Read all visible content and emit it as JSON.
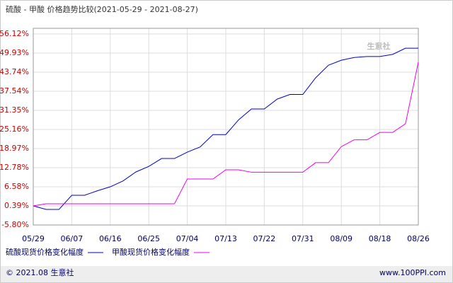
{
  "chart_data": {
    "type": "line",
    "title": "硫酸 - 甲酸 价格趋势比较(2021-05-29 - 2021-08-27)",
    "categories": [
      "05/29",
      null,
      null,
      "06/07",
      null,
      null,
      "06/16",
      null,
      null,
      "06/25",
      null,
      null,
      "07/04",
      null,
      null,
      "07/13",
      null,
      null,
      "07/22",
      null,
      null,
      "07/31",
      null,
      null,
      "08/09",
      null,
      null,
      "08/18",
      null,
      null,
      "08/26"
    ],
    "series": [
      {
        "name": "硫酸现货价格变化幅度",
        "color": "#0000cc",
        "values": [
          0.39,
          -0.76,
          -0.76,
          3.83,
          3.83,
          5.3,
          6.58,
          8.5,
          11.4,
          13.2,
          15.75,
          15.75,
          17.8,
          19.5,
          23.5,
          23.5,
          28.3,
          31.8,
          31.8,
          35,
          36.5,
          36.5,
          41.9,
          46,
          47.6,
          48.5,
          48.8,
          48.8,
          49.5,
          51.5,
          51.5
        ]
      },
      {
        "name": "甲酸现货价格变化幅度",
        "color": "#ee00ee",
        "values": [
          0.39,
          1.08,
          1.08,
          1.08,
          1.08,
          1.08,
          1.08,
          1.08,
          1.08,
          1.08,
          1.08,
          1.08,
          9.1,
          9.1,
          9.1,
          12.1,
          12.1,
          11.3,
          11.3,
          11.3,
          11.3,
          11.3,
          14.4,
          14.4,
          19.6,
          21.8,
          21.8,
          24.2,
          24.2,
          27,
          47
        ]
      }
    ],
    "ylim": [
      -5.8,
      56.12
    ],
    "yticks": [
      {
        "value": 56.12,
        "label": "56.12%"
      },
      {
        "value": 49.93,
        "label": "49.93%"
      },
      {
        "value": 43.74,
        "label": "43.74%"
      },
      {
        "value": 37.54,
        "label": "37.54%"
      },
      {
        "value": 31.35,
        "label": "31.35%"
      },
      {
        "value": 25.16,
        "label": "25.16%"
      },
      {
        "value": 18.97,
        "label": "18.97%"
      },
      {
        "value": 12.78,
        "label": "12.78%"
      },
      {
        "value": 6.58,
        "label": "6.58%"
      },
      {
        "value": 0.39,
        "label": "0.39%"
      },
      {
        "value": -5.8,
        "label": "-5.80%"
      }
    ],
    "grid": true,
    "watermark": "生意社"
  },
  "footer": {
    "left": "© 2021.08 生意社",
    "right": "www.100PPI.com"
  }
}
